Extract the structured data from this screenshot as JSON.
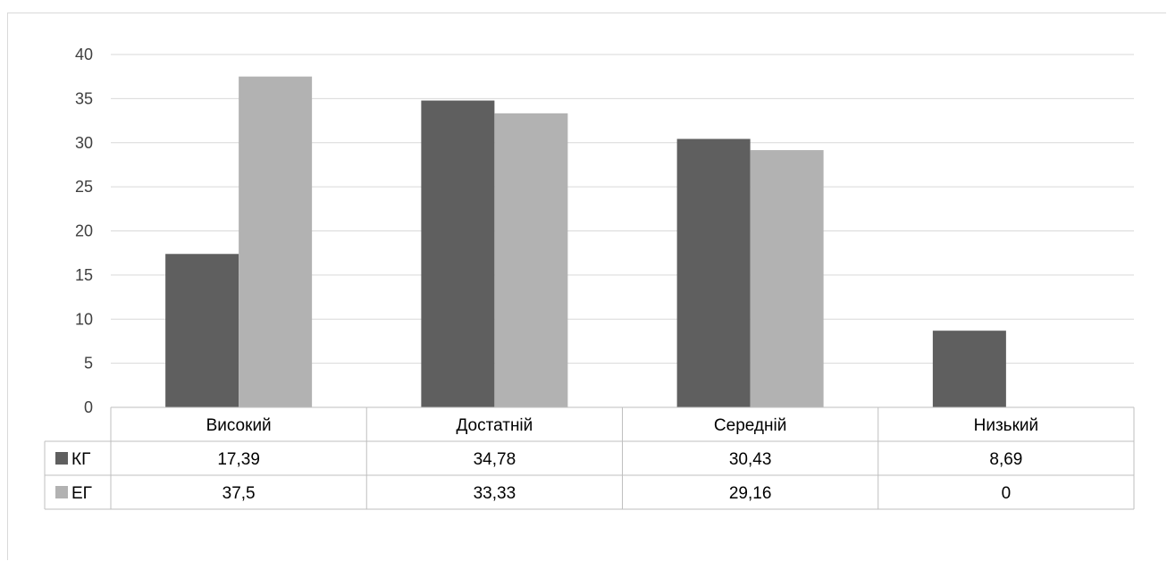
{
  "chart_data": {
    "type": "bar",
    "categories": [
      "Високий",
      "Достатній",
      "Середній",
      "Низький"
    ],
    "series": [
      {
        "name": "КГ",
        "values": [
          17.39,
          34.78,
          30.43,
          8.69
        ],
        "value_labels": [
          "17,39",
          "34,78",
          "30,43",
          "8,69"
        ],
        "color": "#5f5f5f"
      },
      {
        "name": "ЕГ",
        "values": [
          37.5,
          33.33,
          29.16,
          0
        ],
        "value_labels": [
          "37,5",
          "33,33",
          "29,16",
          "0"
        ],
        "color": "#b2b2b2"
      }
    ],
    "ylim": [
      0,
      40
    ],
    "yticks": [
      0,
      5,
      10,
      15,
      20,
      25,
      30,
      35,
      40
    ],
    "grid": true,
    "legend": "data-table",
    "title": "",
    "xlabel": "",
    "ylabel": ""
  }
}
